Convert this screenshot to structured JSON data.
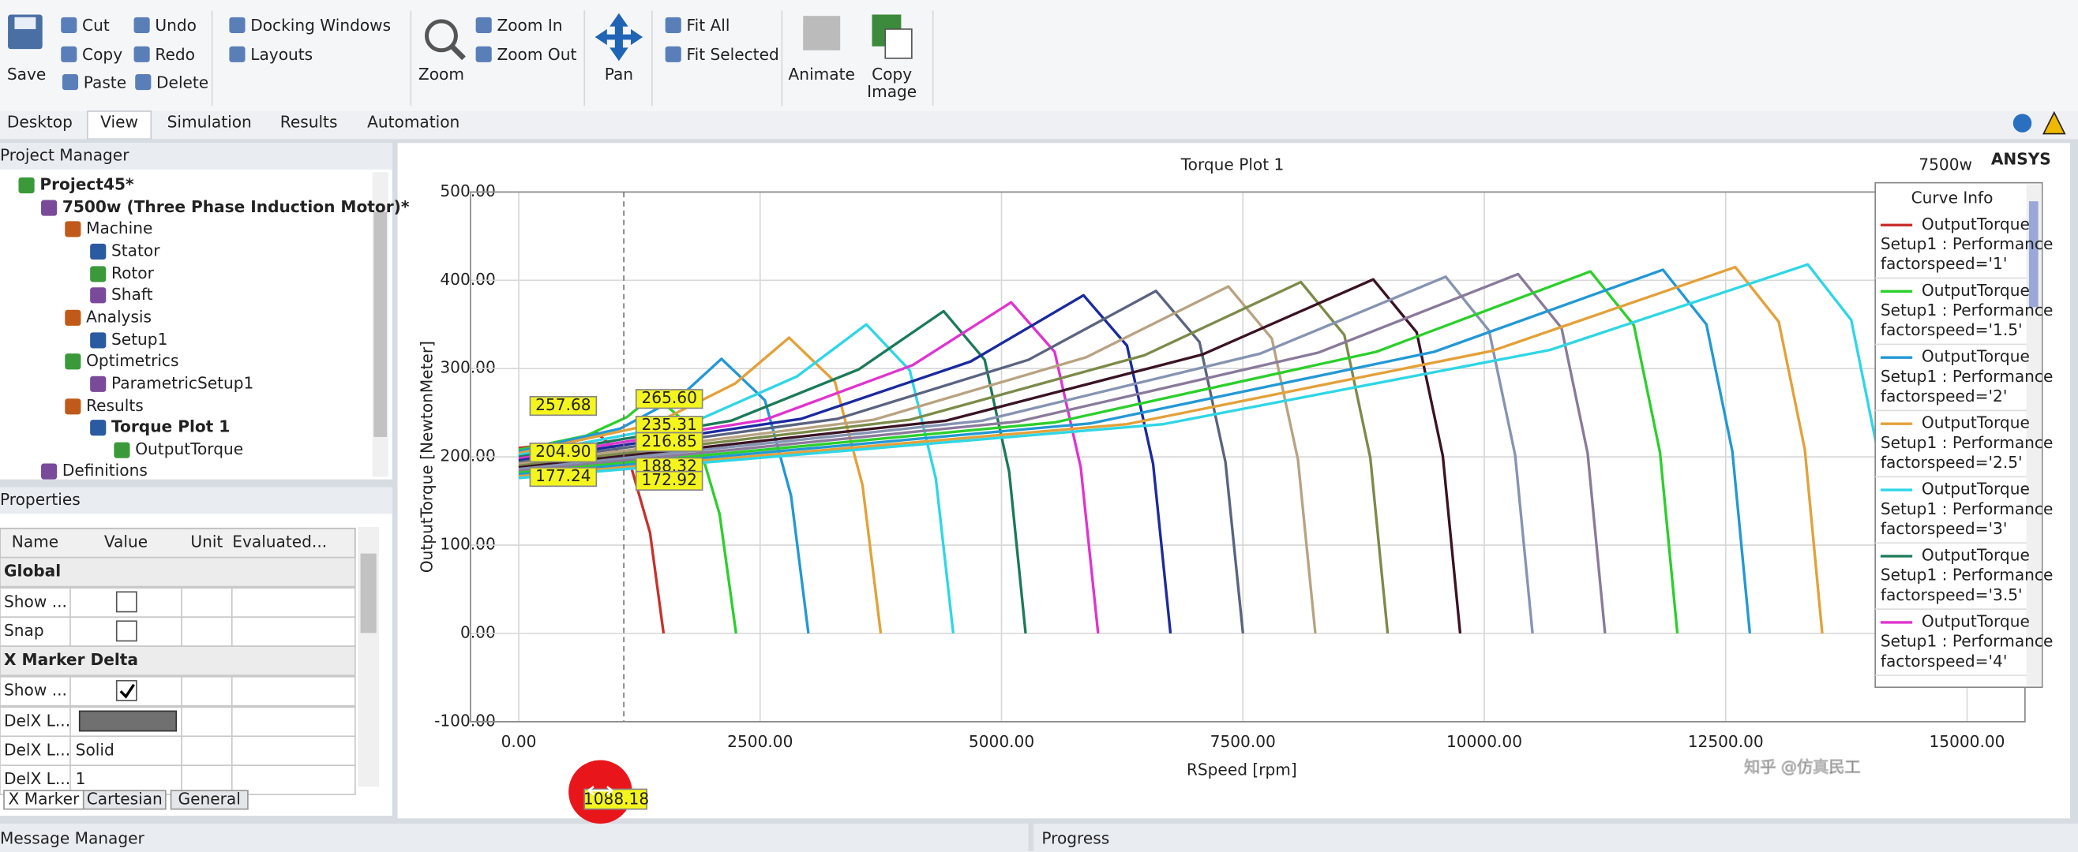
{
  "ribbon": {
    "save": "Save",
    "cut": "Cut",
    "copy": "Copy",
    "paste": "Paste",
    "undo": "Undo",
    "redo": "Redo",
    "delete": "Delete",
    "docking_windows": "Docking Windows",
    "layouts": "Layouts",
    "zoom": "Zoom",
    "zoom_in": "Zoom In",
    "zoom_out": "Zoom Out",
    "pan": "Pan",
    "fit_all": "Fit All",
    "fit_selected": "Fit Selected",
    "animate": "Animate",
    "copy_image": [
      "Copy",
      "Image"
    ]
  },
  "tabs": [
    "Desktop",
    "View",
    "Simulation",
    "Results",
    "Automation"
  ],
  "project_manager": {
    "title": "Project Manager",
    "tree": [
      "Project45*",
      "7500w (Three Phase Induction Motor)*",
      "Machine",
      "Stator",
      "Rotor",
      "Shaft",
      "Analysis",
      "Setup1",
      "Optimetrics",
      "ParametricSetup1",
      "Results",
      "Torque Plot 1",
      "OutputTorque",
      "Definitions"
    ]
  },
  "properties": {
    "title": "Properties",
    "columns": [
      "Name",
      "Value",
      "Unit",
      "Evaluated..."
    ],
    "rows": [
      [
        "Global"
      ],
      [
        "Show ..."
      ],
      [
        "Snap"
      ],
      [
        "X Marker Delta"
      ],
      [
        "Show ..."
      ],
      [
        "DelX L..."
      ],
      [
        "DelX L...",
        "Solid"
      ],
      [
        "DelX L...",
        "1"
      ]
    ],
    "tabs": [
      "X Marker",
      "Cartesian",
      "General"
    ]
  },
  "message_manager": "Message Manager",
  "progress": "Progress",
  "watermark": "知乎 @仿真民工",
  "chart_data": {
    "type": "line",
    "title": "Torque Plot 1",
    "design": "7500w",
    "brand": "ANSYS",
    "xlabel": "RSpeed [rpm]",
    "ylabel": "OutputTorque [NewtonMeter]",
    "legend_title": "Curve Info",
    "legend": "upper right",
    "grid": true,
    "xlim": [
      -500,
      15600
    ],
    "ylim": [
      -100,
      500
    ],
    "xticks": [
      {
        "value": 0,
        "label": "0.00"
      },
      {
        "value": 2500,
        "label": "2500.00"
      },
      {
        "value": 5000,
        "label": "5000.00"
      },
      {
        "value": 7500,
        "label": "7500.00"
      },
      {
        "value": 10000,
        "label": "10000.00"
      },
      {
        "value": 12500,
        "label": "12500.00"
      },
      {
        "value": 15000,
        "label": "15000.00"
      }
    ],
    "yticks": [
      {
        "value": -100,
        "label": "-100.00"
      },
      {
        "value": 0,
        "label": "0.00"
      },
      {
        "value": 100,
        "label": "100.00"
      },
      {
        "value": 200,
        "label": "200.00"
      },
      {
        "value": 300,
        "label": "300.00"
      },
      {
        "value": 400,
        "label": "400.00"
      },
      {
        "value": 500,
        "label": "500.00"
      }
    ],
    "series": [
      {
        "name": "OutputTorque",
        "context": "Setup1 : Performance",
        "variation": "factorspeed='1'",
        "color": "#c8312c",
        "x": [
          0,
          400,
          640,
          800,
          1150,
          1360,
          1500
        ],
        "values": [
          210,
          215,
          221,
          228,
          194,
          114,
          0
        ]
      },
      {
        "name": "OutputTorque",
        "context": "Setup1 : Performance",
        "variation": "factorspeed='1.5'",
        "color": "#2ccf2c",
        "x": [
          0,
          700,
          1120,
          1400,
          1825,
          2080,
          2250
        ],
        "values": [
          208,
          224,
          245,
          270,
          230,
          135,
          0
        ]
      },
      {
        "name": "OutputTorque",
        "context": "Setup1 : Performance",
        "variation": "factorspeed='2'",
        "color": "#2398d4",
        "x": [
          0,
          1050,
          1680,
          2100,
          2550,
          2820,
          3000
        ],
        "values": [
          206,
          232,
          269,
          311,
          264,
          156,
          0
        ]
      },
      {
        "name": "OutputTorque",
        "context": "Setup1 : Performance",
        "variation": "factorspeed='2.5'",
        "color": "#e3a13a",
        "x": [
          0,
          1400,
          2240,
          2800,
          3275,
          3560,
          3750
        ],
        "values": [
          204,
          237,
          283,
          335,
          285,
          168,
          0
        ]
      },
      {
        "name": "OutputTorque",
        "context": "Setup1 : Performance",
        "variation": "factorspeed='3'",
        "color": "#2fd6e6",
        "x": [
          0,
          1800,
          2880,
          3600,
          4050,
          4320,
          4500
        ],
        "values": [
          202,
          239,
          291,
          350,
          298,
          175,
          0
        ]
      },
      {
        "name": "OutputTorque",
        "context": "Setup1 : Performance",
        "variation": "factorspeed='3.5'",
        "color": "#1c7a58",
        "x": [
          0,
          2200,
          3520,
          4400,
          4825,
          5080,
          5250
        ],
        "values": [
          200,
          241,
          299,
          365,
          310,
          183,
          0
        ]
      },
      {
        "name": "OutputTorque",
        "context": "Setup1 : Performance",
        "variation": "factorspeed='4'",
        "color": "#df34cf",
        "x": [
          0,
          2550,
          4080,
          5100,
          5550,
          5820,
          6000
        ],
        "values": [
          198,
          242,
          304,
          375,
          319,
          188,
          0
        ]
      },
      {
        "color": "#1b2a9e",
        "x": [
          0,
          2925,
          4680,
          5850,
          6300,
          6570,
          6750
        ],
        "values": [
          196,
          243,
          308,
          383,
          326,
          192,
          0
        ]
      },
      {
        "color": "#5a6480",
        "x": [
          0,
          3300,
          5280,
          6600,
          7050,
          7320,
          7500
        ],
        "values": [
          194,
          243,
          310,
          388,
          330,
          194,
          0
        ]
      },
      {
        "color": "#b8a382",
        "x": [
          0,
          3675,
          5880,
          7350,
          7800,
          8070,
          8250
        ],
        "values": [
          192,
          242,
          313,
          393,
          334,
          197,
          0
        ]
      },
      {
        "color": "#7c8a4a",
        "x": [
          0,
          4050,
          6480,
          8100,
          8550,
          8820,
          9000
        ],
        "values": [
          190,
          242,
          315,
          398,
          338,
          199,
          0
        ]
      },
      {
        "color": "#3a1324",
        "x": [
          0,
          4425,
          7080,
          8850,
          9300,
          9570,
          9750
        ],
        "values": [
          188,
          241,
          316,
          401,
          341,
          201,
          0
        ]
      },
      {
        "color": "#8694b2",
        "x": [
          0,
          4800,
          7680,
          9600,
          10050,
          10320,
          10500
        ],
        "values": [
          186,
          241,
          317,
          404,
          343,
          202,
          0
        ]
      },
      {
        "color": "#8a7a9a",
        "x": [
          0,
          5175,
          8280,
          10350,
          10800,
          11070,
          11250
        ],
        "values": [
          184,
          240,
          318,
          407,
          346,
          204,
          0
        ]
      },
      {
        "color": "#2ccf2c",
        "x": [
          0,
          5550,
          8880,
          11100,
          11550,
          11820,
          12000
        ],
        "values": [
          182,
          239,
          319,
          410,
          349,
          205,
          0
        ]
      },
      {
        "color": "#2398d4",
        "x": [
          0,
          5925,
          9480,
          11850,
          12300,
          12570,
          12750
        ],
        "values": [
          180,
          238,
          319,
          412,
          350,
          206,
          0
        ]
      },
      {
        "color": "#e3a13a",
        "x": [
          0,
          6300,
          10080,
          12600,
          13050,
          13320,
          13500
        ],
        "values": [
          178,
          237,
          320,
          415,
          353,
          208,
          0
        ]
      },
      {
        "color": "#2fd6e6",
        "x": [
          0,
          6675,
          10680,
          13350,
          13800,
          14070,
          14250
        ],
        "values": [
          176,
          237,
          321,
          418,
          355,
          209,
          0
        ]
      }
    ],
    "x_marker": {
      "value": 1088.18,
      "label": "1088.18"
    },
    "marker_labels": {
      "left": [
        {
          "value": 257.68,
          "label": "257.68"
        },
        {
          "value": 204.9,
          "label": "204.90"
        },
        {
          "value": 177.24,
          "label": "177.24"
        }
      ],
      "right": [
        {
          "value": 265.6,
          "label": "265.60"
        },
        {
          "value": 235.31,
          "label": "235.31"
        },
        {
          "value": 216.85,
          "label": "216.85"
        },
        {
          "value": 188.32,
          "label": "188.32"
        },
        {
          "value": 172.92,
          "label": "172.92"
        }
      ]
    }
  }
}
